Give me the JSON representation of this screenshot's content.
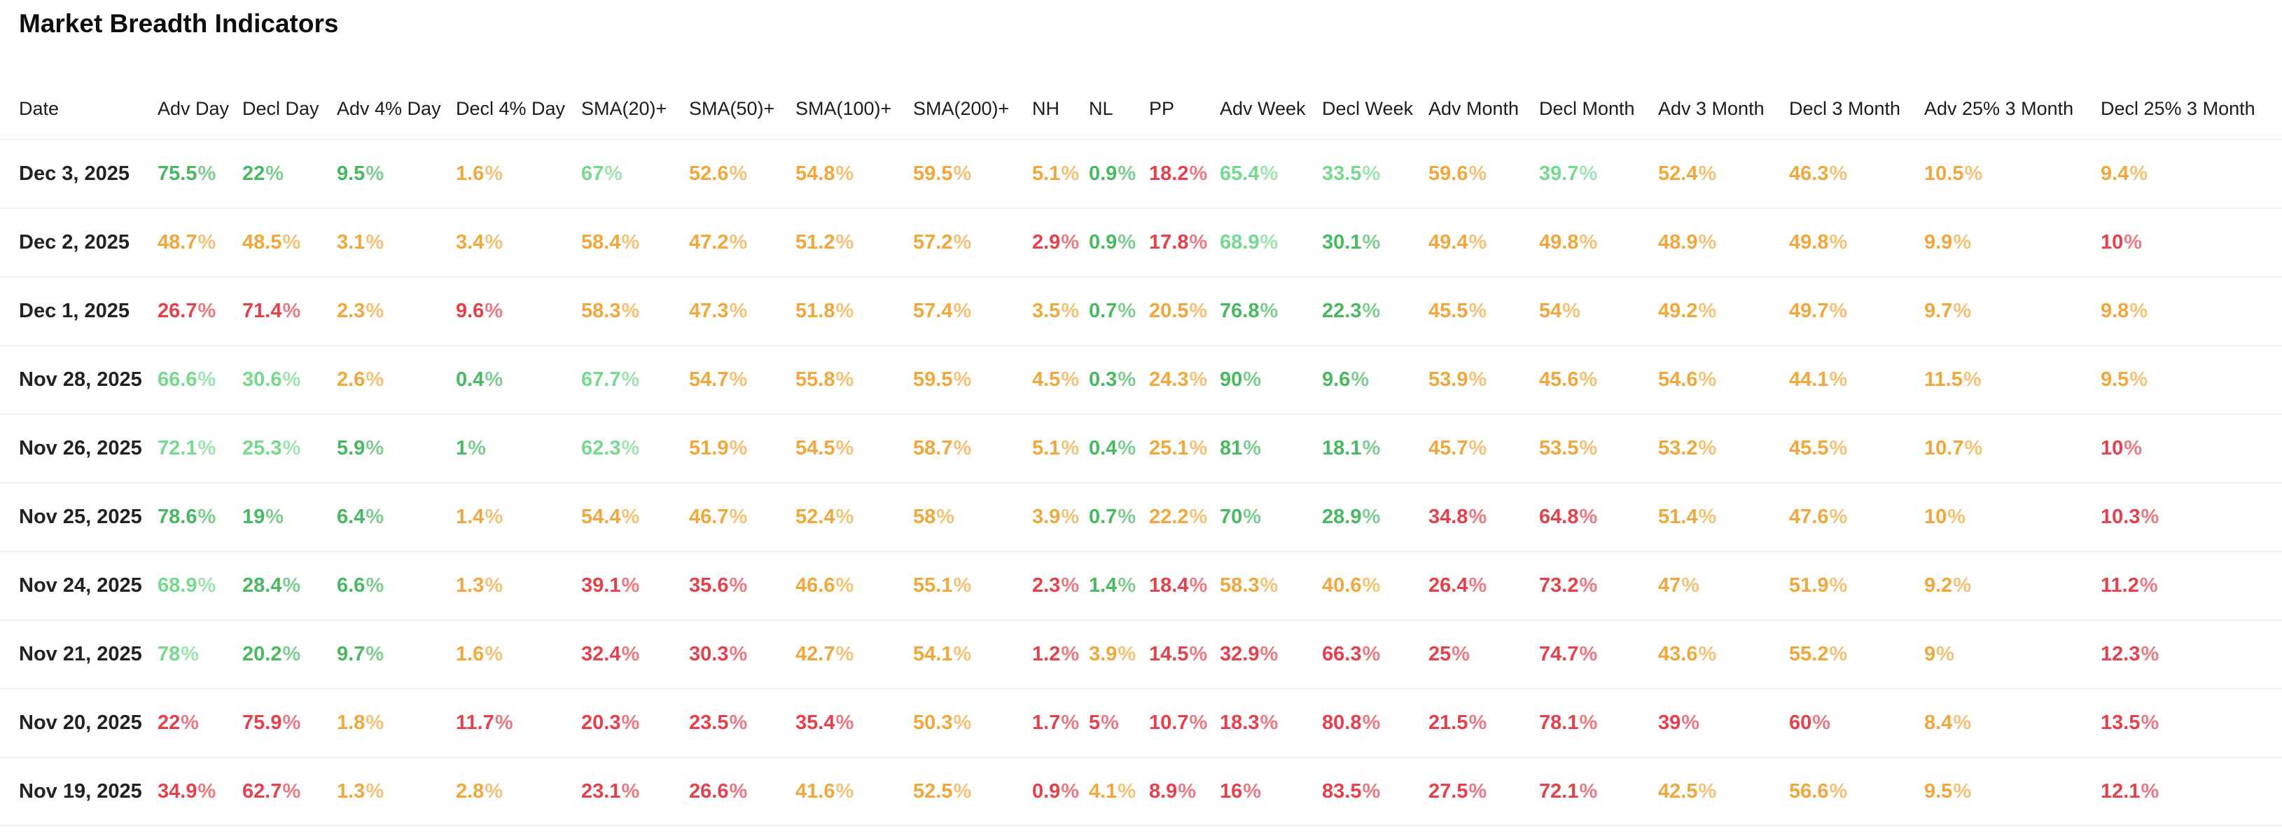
{
  "title": "Market Breadth Indicators",
  "colors": {
    "g": "#46b961",
    "lg": "#76da8e",
    "o": "#f0a83c",
    "r": "#e4414c"
  },
  "table": {
    "columns": [
      "Date",
      "Adv Day",
      "Decl Day",
      "Adv 4% Day",
      "Decl 4% Day",
      "SMA(20)+",
      "SMA(50)+",
      "SMA(100)+",
      "SMA(200)+",
      "NH",
      "NL",
      "PP",
      "Adv Week",
      "Decl Week",
      "Adv Month",
      "Decl Month",
      "Adv 3 Month",
      "Decl 3 Month",
      "Adv 25% 3 Month",
      "Decl 25% 3 Month"
    ],
    "rows": [
      {
        "date": "Dec 3, 2025",
        "cells": [
          [
            "75.5%",
            "g"
          ],
          [
            "22%",
            "g"
          ],
          [
            "9.5%",
            "g"
          ],
          [
            "1.6%",
            "o"
          ],
          [
            "67%",
            "lg"
          ],
          [
            "52.6%",
            "o"
          ],
          [
            "54.8%",
            "o"
          ],
          [
            "59.5%",
            "o"
          ],
          [
            "5.1%",
            "o"
          ],
          [
            "0.9%",
            "g"
          ],
          [
            "18.2%",
            "r"
          ],
          [
            "65.4%",
            "lg"
          ],
          [
            "33.5%",
            "lg"
          ],
          [
            "59.6%",
            "o"
          ],
          [
            "39.7%",
            "lg"
          ],
          [
            "52.4%",
            "o"
          ],
          [
            "46.3%",
            "o"
          ],
          [
            "10.5%",
            "o"
          ],
          [
            "9.4%",
            "o"
          ]
        ]
      },
      {
        "date": "Dec 2, 2025",
        "cells": [
          [
            "48.7%",
            "o"
          ],
          [
            "48.5%",
            "o"
          ],
          [
            "3.1%",
            "o"
          ],
          [
            "3.4%",
            "o"
          ],
          [
            "58.4%",
            "o"
          ],
          [
            "47.2%",
            "o"
          ],
          [
            "51.2%",
            "o"
          ],
          [
            "57.2%",
            "o"
          ],
          [
            "2.9%",
            "r"
          ],
          [
            "0.9%",
            "g"
          ],
          [
            "17.8%",
            "r"
          ],
          [
            "68.9%",
            "lg"
          ],
          [
            "30.1%",
            "g"
          ],
          [
            "49.4%",
            "o"
          ],
          [
            "49.8%",
            "o"
          ],
          [
            "48.9%",
            "o"
          ],
          [
            "49.8%",
            "o"
          ],
          [
            "9.9%",
            "o"
          ],
          [
            "10%",
            "r"
          ]
        ]
      },
      {
        "date": "Dec 1, 2025",
        "cells": [
          [
            "26.7%",
            "r"
          ],
          [
            "71.4%",
            "r"
          ],
          [
            "2.3%",
            "o"
          ],
          [
            "9.6%",
            "r"
          ],
          [
            "58.3%",
            "o"
          ],
          [
            "47.3%",
            "o"
          ],
          [
            "51.8%",
            "o"
          ],
          [
            "57.4%",
            "o"
          ],
          [
            "3.5%",
            "o"
          ],
          [
            "0.7%",
            "g"
          ],
          [
            "20.5%",
            "o"
          ],
          [
            "76.8%",
            "g"
          ],
          [
            "22.3%",
            "g"
          ],
          [
            "45.5%",
            "o"
          ],
          [
            "54%",
            "o"
          ],
          [
            "49.2%",
            "o"
          ],
          [
            "49.7%",
            "o"
          ],
          [
            "9.7%",
            "o"
          ],
          [
            "9.8%",
            "o"
          ]
        ]
      },
      {
        "date": "Nov 28, 2025",
        "cells": [
          [
            "66.6%",
            "lg"
          ],
          [
            "30.6%",
            "lg"
          ],
          [
            "2.6%",
            "o"
          ],
          [
            "0.4%",
            "g"
          ],
          [
            "67.7%",
            "lg"
          ],
          [
            "54.7%",
            "o"
          ],
          [
            "55.8%",
            "o"
          ],
          [
            "59.5%",
            "o"
          ],
          [
            "4.5%",
            "o"
          ],
          [
            "0.3%",
            "g"
          ],
          [
            "24.3%",
            "o"
          ],
          [
            "90%",
            "g"
          ],
          [
            "9.6%",
            "g"
          ],
          [
            "53.9%",
            "o"
          ],
          [
            "45.6%",
            "o"
          ],
          [
            "54.6%",
            "o"
          ],
          [
            "44.1%",
            "o"
          ],
          [
            "11.5%",
            "o"
          ],
          [
            "9.5%",
            "o"
          ]
        ]
      },
      {
        "date": "Nov 26, 2025",
        "cells": [
          [
            "72.1%",
            "lg"
          ],
          [
            "25.3%",
            "lg"
          ],
          [
            "5.9%",
            "g"
          ],
          [
            "1%",
            "g"
          ],
          [
            "62.3%",
            "lg"
          ],
          [
            "51.9%",
            "o"
          ],
          [
            "54.5%",
            "o"
          ],
          [
            "58.7%",
            "o"
          ],
          [
            "5.1%",
            "o"
          ],
          [
            "0.4%",
            "g"
          ],
          [
            "25.1%",
            "o"
          ],
          [
            "81%",
            "g"
          ],
          [
            "18.1%",
            "g"
          ],
          [
            "45.7%",
            "o"
          ],
          [
            "53.5%",
            "o"
          ],
          [
            "53.2%",
            "o"
          ],
          [
            "45.5%",
            "o"
          ],
          [
            "10.7%",
            "o"
          ],
          [
            "10%",
            "r"
          ]
        ]
      },
      {
        "date": "Nov 25, 2025",
        "cells": [
          [
            "78.6%",
            "g"
          ],
          [
            "19%",
            "g"
          ],
          [
            "6.4%",
            "g"
          ],
          [
            "1.4%",
            "o"
          ],
          [
            "54.4%",
            "o"
          ],
          [
            "46.7%",
            "o"
          ],
          [
            "52.4%",
            "o"
          ],
          [
            "58%",
            "o"
          ],
          [
            "3.9%",
            "o"
          ],
          [
            "0.7%",
            "g"
          ],
          [
            "22.2%",
            "o"
          ],
          [
            "70%",
            "g"
          ],
          [
            "28.9%",
            "g"
          ],
          [
            "34.8%",
            "r"
          ],
          [
            "64.8%",
            "r"
          ],
          [
            "51.4%",
            "o"
          ],
          [
            "47.6%",
            "o"
          ],
          [
            "10%",
            "o"
          ],
          [
            "10.3%",
            "r"
          ]
        ]
      },
      {
        "date": "Nov 24, 2025",
        "cells": [
          [
            "68.9%",
            "lg"
          ],
          [
            "28.4%",
            "g"
          ],
          [
            "6.6%",
            "g"
          ],
          [
            "1.3%",
            "o"
          ],
          [
            "39.1%",
            "r"
          ],
          [
            "35.6%",
            "r"
          ],
          [
            "46.6%",
            "o"
          ],
          [
            "55.1%",
            "o"
          ],
          [
            "2.3%",
            "r"
          ],
          [
            "1.4%",
            "g"
          ],
          [
            "18.4%",
            "r"
          ],
          [
            "58.3%",
            "o"
          ],
          [
            "40.6%",
            "o"
          ],
          [
            "26.4%",
            "r"
          ],
          [
            "73.2%",
            "r"
          ],
          [
            "47%",
            "o"
          ],
          [
            "51.9%",
            "o"
          ],
          [
            "9.2%",
            "o"
          ],
          [
            "11.2%",
            "r"
          ]
        ]
      },
      {
        "date": "Nov 21, 2025",
        "cells": [
          [
            "78%",
            "lg"
          ],
          [
            "20.2%",
            "g"
          ],
          [
            "9.7%",
            "g"
          ],
          [
            "1.6%",
            "o"
          ],
          [
            "32.4%",
            "r"
          ],
          [
            "30.3%",
            "r"
          ],
          [
            "42.7%",
            "o"
          ],
          [
            "54.1%",
            "o"
          ],
          [
            "1.2%",
            "r"
          ],
          [
            "3.9%",
            "o"
          ],
          [
            "14.5%",
            "r"
          ],
          [
            "32.9%",
            "r"
          ],
          [
            "66.3%",
            "r"
          ],
          [
            "25%",
            "r"
          ],
          [
            "74.7%",
            "r"
          ],
          [
            "43.6%",
            "o"
          ],
          [
            "55.2%",
            "o"
          ],
          [
            "9%",
            "o"
          ],
          [
            "12.3%",
            "r"
          ]
        ]
      },
      {
        "date": "Nov 20, 2025",
        "cells": [
          [
            "22%",
            "r"
          ],
          [
            "75.9%",
            "r"
          ],
          [
            "1.8%",
            "o"
          ],
          [
            "11.7%",
            "r"
          ],
          [
            "20.3%",
            "r"
          ],
          [
            "23.5%",
            "r"
          ],
          [
            "35.4%",
            "r"
          ],
          [
            "50.3%",
            "o"
          ],
          [
            "1.7%",
            "r"
          ],
          [
            "5%",
            "r"
          ],
          [
            "10.7%",
            "r"
          ],
          [
            "18.3%",
            "r"
          ],
          [
            "80.8%",
            "r"
          ],
          [
            "21.5%",
            "r"
          ],
          [
            "78.1%",
            "r"
          ],
          [
            "39%",
            "r"
          ],
          [
            "60%",
            "r"
          ],
          [
            "8.4%",
            "o"
          ],
          [
            "13.5%",
            "r"
          ]
        ]
      },
      {
        "date": "Nov 19, 2025",
        "cells": [
          [
            "34.9%",
            "r"
          ],
          [
            "62.7%",
            "r"
          ],
          [
            "1.3%",
            "o"
          ],
          [
            "2.8%",
            "o"
          ],
          [
            "23.1%",
            "r"
          ],
          [
            "26.6%",
            "r"
          ],
          [
            "41.6%",
            "o"
          ],
          [
            "52.5%",
            "o"
          ],
          [
            "0.9%",
            "r"
          ],
          [
            "4.1%",
            "o"
          ],
          [
            "8.9%",
            "r"
          ],
          [
            "16%",
            "r"
          ],
          [
            "83.5%",
            "r"
          ],
          [
            "27.5%",
            "r"
          ],
          [
            "72.1%",
            "r"
          ],
          [
            "42.5%",
            "o"
          ],
          [
            "56.6%",
            "o"
          ],
          [
            "9.5%",
            "o"
          ],
          [
            "12.1%",
            "r"
          ]
        ]
      }
    ]
  }
}
